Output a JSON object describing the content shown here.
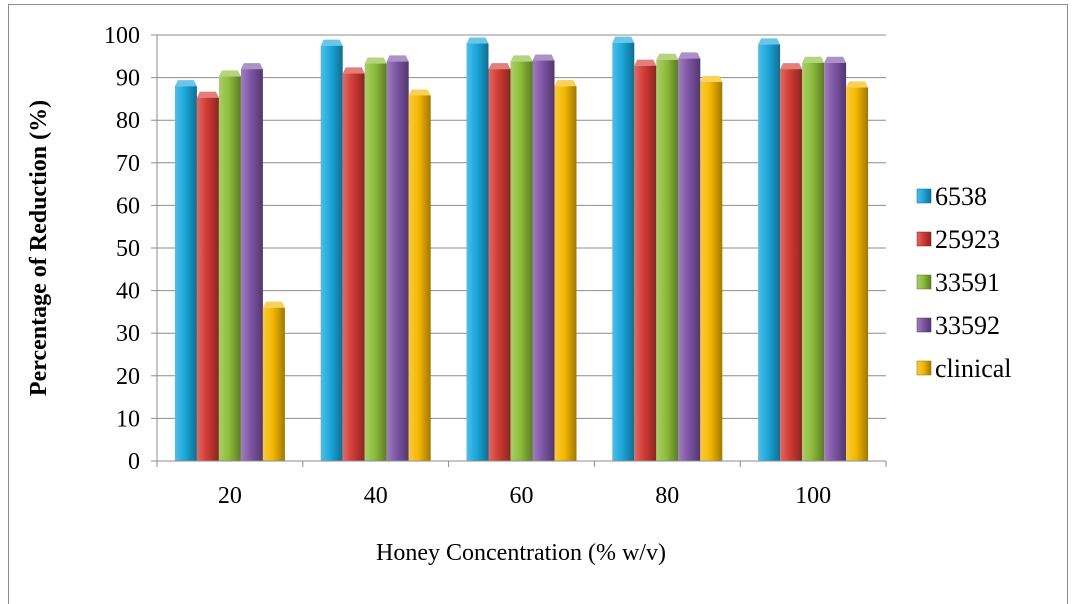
{
  "chart_data": {
    "type": "bar",
    "title": "",
    "xlabel": "Honey Concentration (% w/v)",
    "ylabel": "Percentage of Reduction (%)",
    "ylim": [
      0,
      100
    ],
    "ytick_step": 10,
    "grid": true,
    "legend_position": "right",
    "categories": [
      "20",
      "40",
      "60",
      "80",
      "100"
    ],
    "series": [
      {
        "name": "6538",
        "color": "#1aa7dc",
        "values": [
          88,
          97.5,
          98,
          98.2,
          97.8
        ]
      },
      {
        "name": "25923",
        "color": "#d23a34",
        "values": [
          85.3,
          91,
          92,
          92.8,
          92
        ]
      },
      {
        "name": "33591",
        "color": "#8dbd3a",
        "values": [
          90.3,
          93.3,
          93.8,
          94.2,
          93.5
        ]
      },
      {
        "name": "33592",
        "color": "#7e55a6",
        "values": [
          92,
          93.8,
          94,
          94.5,
          93.5
        ]
      },
      {
        "name": "clinical",
        "color": "#f5b800",
        "values": [
          36,
          85.8,
          88,
          89,
          87.7
        ]
      }
    ]
  }
}
